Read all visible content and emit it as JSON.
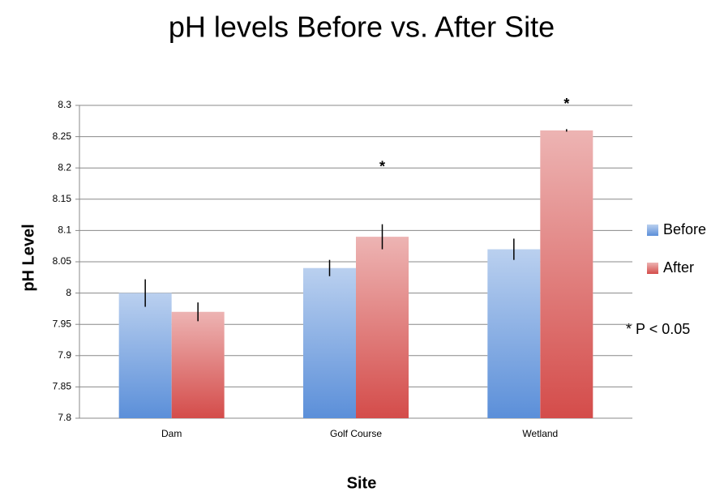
{
  "chart_data": {
    "type": "bar",
    "title": "pH levels Before vs. After Site",
    "x_label": "Site",
    "y_label": "pH Level",
    "categories": [
      "Dam",
      "Golf Course",
      "Wetland"
    ],
    "series": [
      {
        "name": "Before",
        "color": "#5b8fd9",
        "values": [
          8.0,
          8.04,
          8.07
        ],
        "errors": [
          0.022,
          0.013,
          0.017
        ]
      },
      {
        "name": "After",
        "color": "#d44c4a",
        "values": [
          7.97,
          8.09,
          8.26
        ],
        "errors": [
          0.015,
          0.02,
          0.002
        ],
        "significant": [
          false,
          true,
          true
        ]
      }
    ],
    "significance_marker": "*",
    "note": "* P < 0.05",
    "ylim": [
      7.8,
      8.3
    ],
    "yticks": [
      8.3,
      8.25,
      8.2,
      8.15,
      8.1,
      8.05,
      8,
      7.95,
      7.9,
      7.85,
      7.8
    ],
    "grid": true,
    "legend": "right"
  }
}
